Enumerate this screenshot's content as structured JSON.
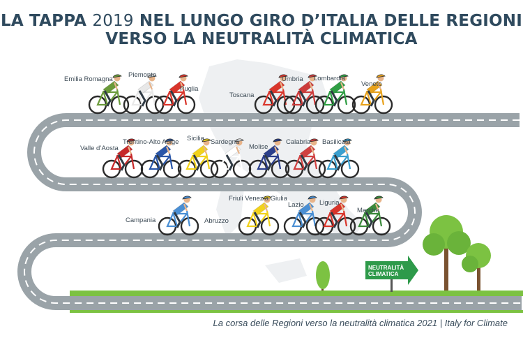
{
  "title": {
    "line1_part1": "LA TAPPA",
    "line1_year": "2019",
    "line1_part2": "NEL LUNGO GIRO D’ITALIA DELLE REGIONI",
    "line2": "VERSO LA NEUTRALITÀ CLIMATICA"
  },
  "finish_sign": {
    "line1": "NEUTRALITÀ",
    "line2": "CLIMATICA",
    "color": "#2e9a4a"
  },
  "caption": "La corsa delle Regioni verso la neutralità climatica 2021 | Italy for Climate",
  "colors": {
    "road": "#9aa3a8",
    "grass": "#7cc242",
    "title": "#2f4a5e",
    "map": "#eef0f2"
  },
  "regions": [
    {
      "id": "emilia-romagna",
      "label": "Emilia Romagna",
      "jersey": "#6a9a3a"
    },
    {
      "id": "piemonte",
      "label": "Piemonte",
      "jersey": "#e8e8e8"
    },
    {
      "id": "puglia",
      "label": "Puglia",
      "jersey": "#d9352b"
    },
    {
      "id": "toscana",
      "label": "Toscana",
      "jersey": "#d9352b"
    },
    {
      "id": "umbria",
      "label": "Umbria",
      "jersey": "#cc3b3b"
    },
    {
      "id": "lombardia",
      "label": "Lombardia",
      "jersey": "#2f9e44"
    },
    {
      "id": "veneto",
      "label": "Veneto",
      "jersey": "#e8a21c"
    },
    {
      "id": "valle-d-aosta",
      "label": "Valle d’Aosta",
      "jersey": "#c62828"
    },
    {
      "id": "trentino-alto-adige",
      "label": "Trentino-Alto Adige",
      "jersey": "#2a56a8"
    },
    {
      "id": "sicilia",
      "label": "Sicilia",
      "jersey": "#f2d21b"
    },
    {
      "id": "sardegna",
      "label": "Sardegna",
      "jersey": "#ffffff"
    },
    {
      "id": "molise",
      "label": "Molise",
      "jersey": "#2b3f8c"
    },
    {
      "id": "calabria",
      "label": "Calabria",
      "jersey": "#d04040"
    },
    {
      "id": "basilicata",
      "label": "Basilicata",
      "jersey": "#3aa0d0"
    },
    {
      "id": "campania",
      "label": "Campania",
      "jersey": "#4a8fd4"
    },
    {
      "id": "abruzzo",
      "label": "Abruzzo",
      "jersey": "#ffffff"
    },
    {
      "id": "friuli-venezia-giulia",
      "label": "Friuli Venezia Giulia",
      "jersey": "#f2d21b"
    },
    {
      "id": "lazio",
      "label": "Lazio",
      "jersey": "#4a8fd4"
    },
    {
      "id": "liguria",
      "label": "Liguria",
      "jersey": "#d9352b"
    },
    {
      "id": "marche",
      "label": "Marche",
      "jersey": "#3a8a3a"
    }
  ]
}
